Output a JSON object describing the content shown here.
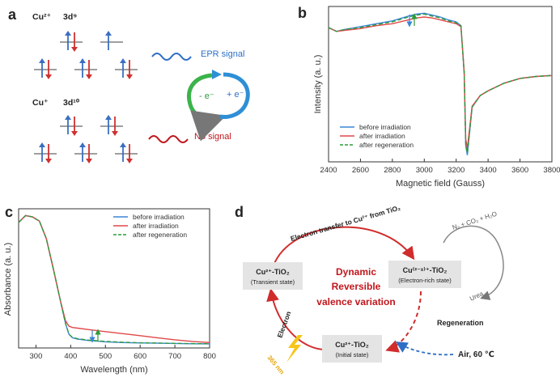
{
  "panel_labels": {
    "a": "a",
    "b": "b",
    "c": "c",
    "d": "d"
  },
  "panel_a": {
    "cu2_label": "Cu²⁺",
    "cu2_config": "3d⁹",
    "cu1_label": "Cu⁺",
    "cu1_config": "3d¹⁰",
    "epr_signal": "EPR signal",
    "no_signal": "No signal",
    "cycle_left": "- e⁻",
    "cycle_right": "+ e⁻"
  },
  "panel_d": {
    "top_arc_label": "Electron transfer to Cu²⁺ from TiO₂",
    "left_arc_label": "Electron",
    "light_label": "365 nm",
    "state_transient_title": "Cu²⁺-TiO₂",
    "state_transient_sub": "(Transient state)",
    "state_rich_title": "Cu⁽²⁻ˣ⁾⁺-TiO₂",
    "state_rich_sub": "(Electron-rich state)",
    "state_initial_title": "Cu²⁺-TiO₂",
    "state_initial_sub": "(Initial state)",
    "center_line1": "Dynamic",
    "center_line2": "Reversible",
    "center_line3": "valence variation",
    "products": "N₂ + CO₂ + H₂O",
    "reactant": "Urea",
    "regeneration": "Regeneration",
    "air": "Air, 60 ℃"
  },
  "colors": {
    "before": "#3a86d6",
    "after": "#e04848",
    "regen": "#2e9a3a",
    "red_text": "#c0161c",
    "blue_text": "#2e6fc6"
  },
  "chart_data": [
    {
      "type": "line",
      "xlabel": "Magnetic field (Gauss)",
      "ylabel": "Intensity (a. u.)",
      "xlim": [
        2400,
        3800
      ],
      "xticks": [
        2400,
        2600,
        2800,
        3000,
        3200,
        3400,
        3600,
        3800
      ],
      "legend_position": "bottom-left",
      "series": [
        {
          "name": "before irradiation",
          "color": "#3a86d6",
          "x": [
            2400,
            2450,
            2500,
            2600,
            2700,
            2800,
            2900,
            2950,
            3000,
            3050,
            3100,
            3150,
            3200,
            3230,
            3250,
            3260,
            3270,
            3280,
            3300,
            3350,
            3400,
            3500,
            3600,
            3700,
            3800
          ],
          "y": [
            0.78,
            0.74,
            0.76,
            0.79,
            0.82,
            0.85,
            0.9,
            0.92,
            0.93,
            0.91,
            0.89,
            0.86,
            0.84,
            0.8,
            0.3,
            -0.45,
            -0.55,
            -0.38,
            -0.05,
            0.07,
            0.12,
            0.2,
            0.25,
            0.27,
            0.28
          ]
        },
        {
          "name": "after irradiation",
          "color": "#e04848",
          "x": [
            2400,
            2450,
            2500,
            2600,
            2700,
            2800,
            2900,
            2950,
            3000,
            3050,
            3100,
            3150,
            3200,
            3230,
            3250,
            3260,
            3270,
            3280,
            3300,
            3350,
            3400,
            3500,
            3600,
            3700,
            3800
          ],
          "y": [
            0.78,
            0.74,
            0.75,
            0.77,
            0.8,
            0.82,
            0.86,
            0.88,
            0.89,
            0.88,
            0.86,
            0.84,
            0.82,
            0.79,
            0.32,
            -0.38,
            -0.48,
            -0.33,
            -0.04,
            0.07,
            0.12,
            0.2,
            0.25,
            0.27,
            0.28
          ]
        },
        {
          "name": "after regeneration",
          "color": "#2e9a3a",
          "dashed": true,
          "x": [
            2400,
            2450,
            2500,
            2600,
            2700,
            2800,
            2900,
            2950,
            3000,
            3050,
            3100,
            3150,
            3200,
            3230,
            3250,
            3260,
            3270,
            3280,
            3300,
            3350,
            3400,
            3500,
            3600,
            3700,
            3800
          ],
          "y": [
            0.78,
            0.74,
            0.76,
            0.78,
            0.81,
            0.84,
            0.89,
            0.91,
            0.92,
            0.9,
            0.88,
            0.85,
            0.83,
            0.8,
            0.31,
            -0.43,
            -0.53,
            -0.37,
            -0.05,
            0.07,
            0.12,
            0.2,
            0.25,
            0.27,
            0.28
          ]
        }
      ]
    },
    {
      "type": "line",
      "xlabel": "Wavelength (nm)",
      "ylabel": "Absorbance (a. u.)",
      "xlim": [
        250,
        800
      ],
      "xticks": [
        300,
        400,
        500,
        600,
        700,
        800
      ],
      "legend_position": "top-right",
      "series": [
        {
          "name": "before irradiation",
          "color": "#3a86d6",
          "x": [
            250,
            270,
            290,
            310,
            330,
            350,
            370,
            385,
            395,
            405,
            420,
            450,
            500,
            550,
            600,
            650,
            700,
            750,
            800
          ],
          "y": [
            0.92,
            0.97,
            0.96,
            0.93,
            0.8,
            0.58,
            0.35,
            0.18,
            0.1,
            0.075,
            0.065,
            0.055,
            0.045,
            0.04,
            0.037,
            0.035,
            0.033,
            0.031,
            0.03
          ]
        },
        {
          "name": "after irradiation",
          "color": "#e04848",
          "x": [
            250,
            270,
            290,
            310,
            330,
            350,
            370,
            385,
            395,
            405,
            420,
            450,
            500,
            550,
            600,
            650,
            700,
            750,
            800
          ],
          "y": [
            0.92,
            0.97,
            0.96,
            0.93,
            0.8,
            0.58,
            0.35,
            0.2,
            0.16,
            0.15,
            0.145,
            0.135,
            0.12,
            0.105,
            0.09,
            0.075,
            0.06,
            0.048,
            0.04
          ]
        },
        {
          "name": "after regeneration",
          "color": "#2e9a3a",
          "dashed": true,
          "x": [
            250,
            270,
            290,
            310,
            330,
            350,
            370,
            385,
            395,
            405,
            420,
            450,
            500,
            550,
            600,
            650,
            700,
            750,
            800
          ],
          "y": [
            0.92,
            0.97,
            0.96,
            0.93,
            0.8,
            0.58,
            0.35,
            0.18,
            0.1,
            0.078,
            0.068,
            0.058,
            0.048,
            0.042,
            0.038,
            0.036,
            0.034,
            0.032,
            0.031
          ]
        }
      ]
    }
  ]
}
